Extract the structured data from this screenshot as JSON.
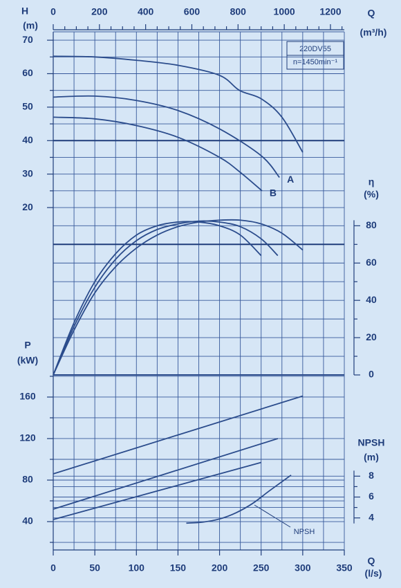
{
  "chart_data": [
    {
      "type": "line",
      "color": "#2b4c8c",
      "xlim": [
        0,
        350
      ],
      "xgrid": [
        0,
        25,
        50,
        75,
        100,
        125,
        150,
        175,
        200,
        225,
        250,
        275,
        300,
        325,
        350
      ],
      "x2label": "Q",
      "x2unit": "(m³/h)",
      "x2lim": [
        0,
        1260
      ],
      "x2ticks": [
        0,
        200,
        400,
        600,
        800,
        1000,
        1200
      ],
      "x2minor_ticks": [
        50,
        100,
        150,
        250,
        300,
        350,
        450,
        500,
        550,
        650,
        700,
        750,
        850,
        900,
        950,
        1050,
        1100,
        1150,
        1250
      ],
      "ylabel": "H",
      "yunit": "(m)",
      "ylim": [
        -30,
        72.5
      ],
      "yticks": [
        20,
        30,
        40,
        50,
        60,
        70
      ],
      "yminor_ticks": [
        25,
        35,
        45,
        55,
        65
      ],
      "bold_yticks": [
        40
      ],
      "y2label": "η",
      "y2unit": "(%)",
      "y2lim": [
        0,
        184
      ],
      "y2ticks": [
        0,
        20,
        40,
        60,
        80
      ],
      "y2minor_ticks": [
        10,
        30,
        50,
        70
      ],
      "bold_y2ticks": [
        70
      ],
      "model": "220DV55",
      "speed": "n=1450min⁻¹",
      "series": [
        {
          "axis": "y",
          "x": [
            0,
            50,
            100,
            150,
            200,
            224,
            250,
            275,
            300
          ],
          "values": [
            65.2,
            65,
            64,
            62.5,
            59.5,
            55,
            52.5,
            47,
            36.5
          ]
        },
        {
          "name": "A",
          "axis": "y",
          "x": [
            0,
            50,
            100,
            150,
            200,
            250,
            272
          ],
          "values": [
            53,
            53.3,
            52,
            49,
            43.5,
            35.5,
            29
          ]
        },
        {
          "name": "B",
          "axis": "y",
          "x": [
            0,
            50,
            100,
            150,
            200,
            225,
            251
          ],
          "values": [
            47,
            46.5,
            44.5,
            41,
            35,
            30.5,
            25
          ]
        },
        {
          "axis": "y2",
          "x": [
            0,
            25,
            50,
            75,
            100,
            125,
            150,
            175,
            200,
            225,
            250,
            275,
            300
          ],
          "values": [
            0,
            24,
            44,
            58,
            68,
            75,
            79.5,
            82,
            83,
            83,
            81,
            76,
            67
          ]
        },
        {
          "axis": "y2",
          "x": [
            0,
            25,
            50,
            75,
            100,
            125,
            150,
            175,
            200,
            225,
            250,
            270
          ],
          "values": [
            0,
            26,
            47,
            62,
            72,
            78,
            81,
            82.5,
            82,
            79.5,
            73,
            64
          ]
        },
        {
          "axis": "y2",
          "x": [
            0,
            25,
            50,
            75,
            100,
            125,
            150,
            175,
            200,
            225,
            250
          ],
          "values": [
            0,
            28,
            50,
            65,
            75,
            80,
            82,
            82,
            80,
            75,
            64
          ]
        }
      ]
    },
    {
      "type": "line",
      "color": "#2b4c8c",
      "xlabel": "Q",
      "xunit": "(l/s)",
      "xlim": [
        0,
        350
      ],
      "xticks": [
        0,
        50,
        100,
        150,
        200,
        250,
        300,
        350
      ],
      "xgrid": [
        0,
        25,
        50,
        75,
        100,
        125,
        150,
        175,
        200,
        225,
        250,
        275,
        300,
        325,
        350
      ],
      "ylabel": "P",
      "yunit": "(kW)",
      "ylim": [
        12.7,
        181.3
      ],
      "yticks": [
        40,
        80,
        120,
        160
      ],
      "yminor_ticks": [
        20,
        60,
        100,
        140,
        180
      ],
      "y2label": "NPSH",
      "y2unit": "(m)",
      "y2lim": [
        0.93,
        17.7
      ],
      "y2ticks": [
        4,
        6,
        8
      ],
      "y2minor_ticks": [
        5,
        7
      ],
      "annotation": "NPSH",
      "series": [
        {
          "axis": "y",
          "x": [
            0,
            300
          ],
          "values": [
            86,
            161
          ]
        },
        {
          "axis": "y",
          "x": [
            0,
            270
          ],
          "values": [
            52,
            120
          ]
        },
        {
          "axis": "y",
          "x": [
            0,
            250
          ],
          "values": [
            42,
            97
          ]
        },
        {
          "axis": "y2",
          "x": [
            160,
            180,
            200,
            220,
            240,
            260,
            286
          ],
          "values": [
            3.5,
            3.6,
            3.9,
            4.5,
            5.4,
            6.6,
            8.1
          ]
        }
      ]
    }
  ]
}
